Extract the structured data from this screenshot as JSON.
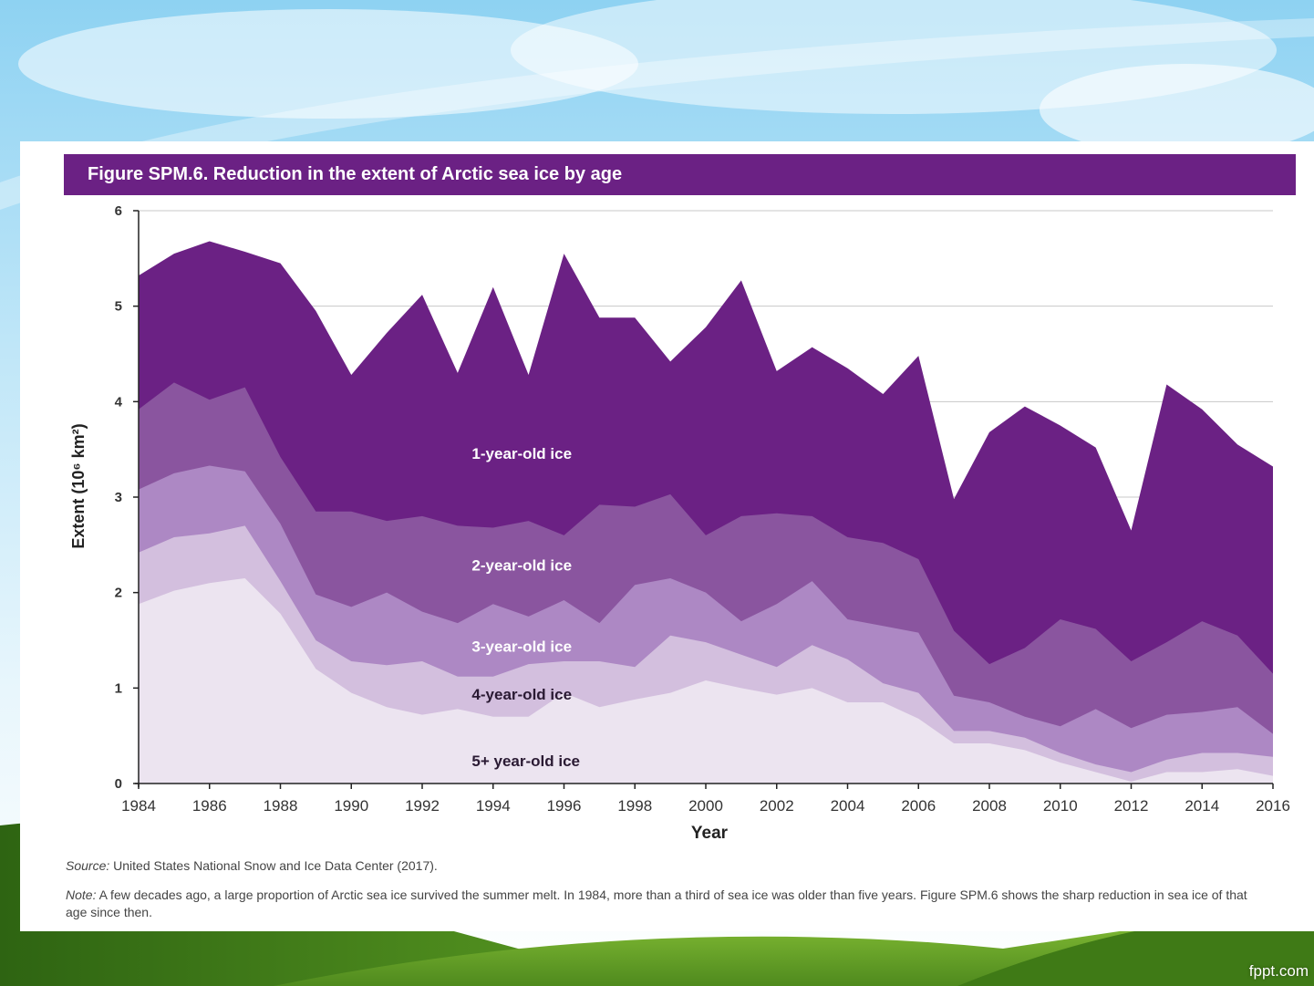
{
  "slide": {
    "watermark": "fppt.com"
  },
  "figure": {
    "title": "Figure SPM.6. Reduction in the extent of Arctic sea ice by age",
    "source_label": "Source:",
    "source_text": "United States National Snow and Ice Data Center (2017).",
    "note_label": "Note:",
    "note_text": "A few decades ago, a large proportion of Arctic sea ice survived the summer melt. In 1984, more than a third of sea ice was older than five years. Figure SPM.6 shows the sharp reduction in sea ice of that age since then."
  },
  "chart_data": {
    "type": "area",
    "stacked": true,
    "title": "Figure SPM.6. Reduction in the extent of Arctic sea ice by age",
    "xlabel": "Year",
    "ylabel": "Extent (10⁶ km²)",
    "xlim": [
      1984,
      2016
    ],
    "ylim": [
      0,
      6
    ],
    "yticks": [
      0,
      1,
      2,
      3,
      4,
      5,
      6
    ],
    "xticks": [
      1984,
      1986,
      1988,
      1990,
      1992,
      1994,
      1996,
      1998,
      2000,
      2002,
      2004,
      2006,
      2008,
      2010,
      2012,
      2014,
      2016
    ],
    "grid": "horizontal",
    "legend": "inline labels",
    "x": [
      1984,
      1985,
      1986,
      1987,
      1988,
      1989,
      1990,
      1991,
      1992,
      1993,
      1994,
      1995,
      1996,
      1997,
      1998,
      1999,
      2000,
      2001,
      2002,
      2003,
      2004,
      2005,
      2006,
      2007,
      2008,
      2009,
      2010,
      2011,
      2012,
      2013,
      2014,
      2015,
      2016
    ],
    "cumulative": true,
    "series": [
      {
        "name": "5+ year-old ice",
        "color": "#ece4f0",
        "values": [
          1.88,
          2.02,
          2.1,
          2.15,
          1.78,
          1.2,
          0.95,
          0.8,
          0.72,
          0.78,
          0.7,
          0.7,
          0.95,
          0.8,
          0.88,
          0.95,
          1.08,
          1.0,
          0.93,
          1.0,
          0.85,
          0.85,
          0.68,
          0.42,
          0.42,
          0.35,
          0.22,
          0.12,
          0.02,
          0.12,
          0.12,
          0.15,
          0.08
        ]
      },
      {
        "name": "4-year-old ice",
        "color": "#d3bfde",
        "values": [
          2.42,
          2.58,
          2.62,
          2.7,
          2.12,
          1.5,
          1.28,
          1.24,
          1.28,
          1.12,
          1.12,
          1.25,
          1.28,
          1.28,
          1.22,
          1.55,
          1.48,
          1.35,
          1.22,
          1.45,
          1.3,
          1.05,
          0.95,
          0.55,
          0.55,
          0.48,
          0.32,
          0.2,
          0.12,
          0.25,
          0.32,
          0.32,
          0.28
        ]
      },
      {
        "name": "3-year-old ice",
        "color": "#ad88c4",
        "values": [
          3.08,
          3.25,
          3.33,
          3.27,
          2.72,
          1.98,
          1.85,
          2.0,
          1.8,
          1.68,
          1.88,
          1.75,
          1.92,
          1.68,
          2.08,
          2.15,
          2.0,
          1.7,
          1.88,
          2.12,
          1.72,
          1.65,
          1.58,
          0.92,
          0.85,
          0.7,
          0.6,
          0.78,
          0.58,
          0.72,
          0.75,
          0.8,
          0.52
        ]
      },
      {
        "name": "2-year-old ice",
        "color": "#8a559f",
        "values": [
          3.92,
          4.2,
          4.02,
          4.15,
          3.42,
          2.85,
          2.85,
          2.75,
          2.8,
          2.7,
          2.68,
          2.75,
          2.6,
          2.92,
          2.9,
          3.03,
          2.6,
          2.8,
          2.83,
          2.8,
          2.58,
          2.52,
          2.35,
          1.6,
          1.25,
          1.42,
          1.72,
          1.62,
          1.28,
          1.48,
          1.7,
          1.55,
          1.15
        ]
      },
      {
        "name": "1-year-old ice",
        "color": "#6b2184",
        "values": [
          5.32,
          5.55,
          5.68,
          5.57,
          5.45,
          4.95,
          4.28,
          4.72,
          5.12,
          4.3,
          5.2,
          4.28,
          5.55,
          4.88,
          4.88,
          4.42,
          4.78,
          5.27,
          4.32,
          4.57,
          4.35,
          4.08,
          4.48,
          2.98,
          3.68,
          3.95,
          3.75,
          3.52,
          2.65,
          4.18,
          3.92,
          3.55,
          3.32
        ]
      }
    ],
    "annotations": [
      "1-year-old ice",
      "2-year-old ice",
      "3-year-old ice",
      "4-year-old ice",
      "5+ year-old ice"
    ]
  }
}
